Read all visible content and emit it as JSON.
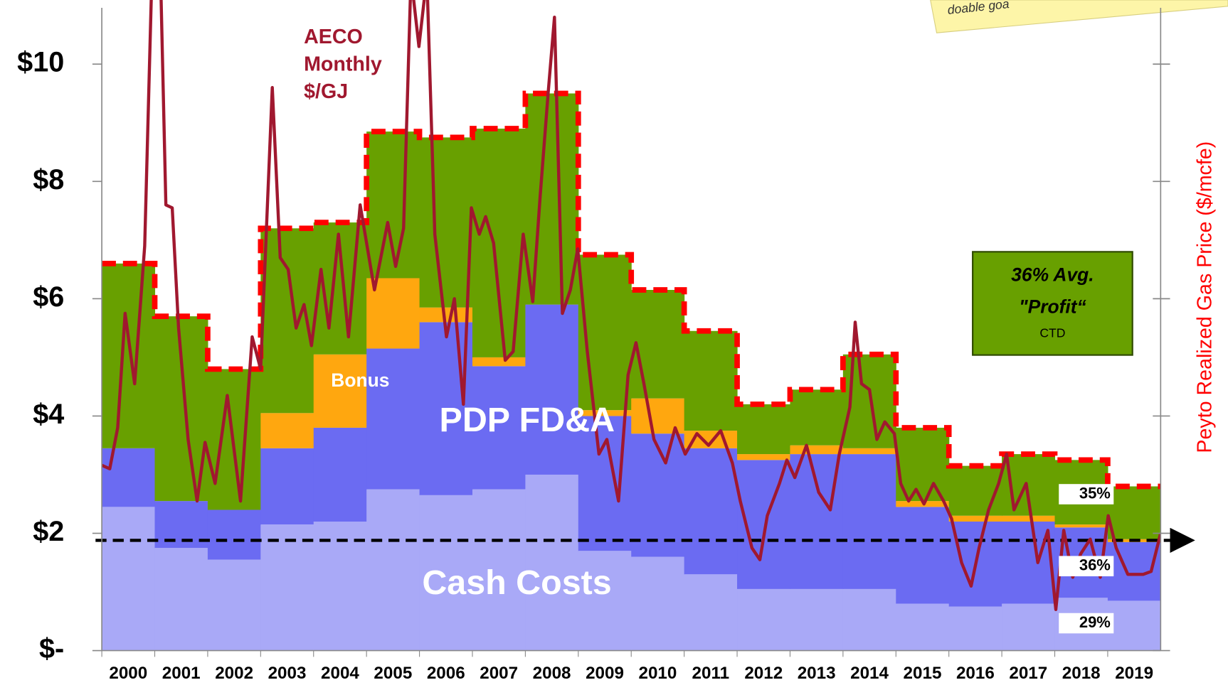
{
  "chart_data": {
    "type": "step_area",
    "categories": [
      "2000",
      "2001",
      "2002",
      "2003",
      "2004",
      "2005",
      "2006",
      "2007",
      "2008",
      "2009",
      "2010",
      "2011",
      "2012",
      "2013",
      "2014",
      "2015",
      "2016",
      "2017",
      "2018",
      "2019"
    ],
    "series": [
      {
        "name": "Cash Costs",
        "color": "#a9a9f7",
        "values": [
          2.45,
          1.75,
          1.55,
          2.15,
          2.2,
          2.75,
          2.65,
          2.75,
          3.0,
          1.7,
          1.6,
          1.3,
          1.05,
          1.05,
          1.05,
          0.8,
          0.75,
          0.8,
          0.9,
          0.85
        ]
      },
      {
        "name": "PDP FD&A",
        "color": "#6b6bf2",
        "values": [
          1.0,
          0.8,
          0.85,
          1.3,
          1.6,
          2.4,
          2.95,
          2.1,
          2.9,
          2.3,
          2.1,
          2.15,
          2.2,
          2.3,
          2.3,
          1.65,
          1.45,
          1.4,
          1.2,
          1.0
        ]
      },
      {
        "name": "Bonus",
        "color": "#ffa70f",
        "values": [
          0,
          0,
          0,
          0.6,
          1.25,
          1.2,
          0.25,
          0.15,
          0,
          0.1,
          0.6,
          0.3,
          0.1,
          0.15,
          0.1,
          0.1,
          0.1,
          0.1,
          0.05,
          0.05
        ]
      },
      {
        "color": "#68a000",
        "values": [
          3.15,
          3.15,
          2.4,
          3.15,
          2.25,
          2.5,
          2.9,
          3.9,
          3.6,
          2.65,
          1.85,
          1.7,
          0.85,
          0.95,
          1.6,
          1.25,
          0.85,
          1.05,
          1.1,
          0.9
        ]
      }
    ],
    "outline_color": "#ff0000",
    "line": {
      "name": "AECO Monthly $/GJ",
      "color": "#a0182f",
      "x": [
        2000.0,
        2000.15,
        2000.3,
        2000.44,
        2000.62,
        2000.81,
        2000.96,
        2001.11,
        2001.21,
        2001.33,
        2001.45,
        2001.63,
        2001.8,
        2001.95,
        2002.14,
        2002.37,
        2002.62,
        2002.84,
        2003.0,
        2003.22,
        2003.37,
        2003.52,
        2003.67,
        2003.82,
        2003.96,
        2004.14,
        2004.29,
        2004.47,
        2004.66,
        2004.88,
        2005.15,
        2005.4,
        2005.55,
        2005.7,
        2005.84,
        2005.99,
        2006.14,
        2006.29,
        2006.51,
        2006.66,
        2006.83,
        2006.98,
        2007.13,
        2007.25,
        2007.4,
        2007.62,
        2007.77,
        2007.96,
        2008.14,
        2008.28,
        2008.43,
        2008.55,
        2008.7,
        2008.85,
        2008.99,
        2009.17,
        2009.39,
        2009.54,
        2009.76,
        2009.94,
        2010.09,
        2010.24,
        2010.43,
        2010.65,
        2010.83,
        2011.02,
        2011.24,
        2011.46,
        2011.69,
        2011.91,
        2012.06,
        2012.28,
        2012.43,
        2012.57,
        2012.8,
        2012.94,
        2013.09,
        2013.31,
        2013.54,
        2013.76,
        2013.93,
        2014.13,
        2014.23,
        2014.35,
        2014.5,
        2014.64,
        2014.79,
        2014.97,
        2015.09,
        2015.24,
        2015.38,
        2015.53,
        2015.71,
        2015.9,
        2016.05,
        2016.24,
        2016.42,
        2016.57,
        2016.75,
        2016.94,
        2017.09,
        2017.23,
        2017.46,
        2017.68,
        2017.87,
        2018.02,
        2018.17,
        2018.34,
        2018.49,
        2018.67,
        2018.86,
        2019.01,
        2019.16,
        2019.38,
        2019.67,
        2019.82,
        2020.0
      ],
      "values": [
        3.16,
        3.1,
        3.8,
        5.75,
        4.55,
        6.9,
        12,
        11.5,
        7.6,
        7.55,
        5.5,
        3.6,
        2.55,
        3.55,
        2.85,
        4.35,
        2.55,
        5.35,
        4.8,
        9.6,
        6.7,
        6.5,
        5.5,
        5.9,
        5.2,
        6.5,
        5.5,
        7.1,
        5.35,
        7.6,
        6.15,
        7.3,
        6.55,
        7.2,
        11.5,
        10.3,
        11.5,
        7.1,
        5.35,
        6.0,
        4.2,
        7.55,
        7.1,
        7.4,
        6.95,
        4.95,
        5.1,
        7.1,
        5.95,
        7.75,
        9.5,
        10.8,
        5.75,
        6.15,
        6.85,
        5.1,
        3.35,
        3.6,
        2.55,
        4.7,
        5.25,
        4.55,
        3.6,
        3.2,
        3.8,
        3.35,
        3.7,
        3.5,
        3.75,
        3.2,
        2.55,
        1.75,
        1.55,
        2.3,
        2.85,
        3.25,
        2.95,
        3.5,
        2.7,
        2.4,
        3.35,
        4.15,
        5.6,
        4.55,
        4.45,
        3.6,
        3.9,
        3.7,
        2.85,
        2.55,
        2.75,
        2.5,
        2.85,
        2.55,
        2.25,
        1.5,
        1.1,
        1.75,
        2.4,
        2.85,
        3.35,
        2.4,
        2.85,
        1.5,
        2.05,
        0.7,
        2.05,
        1.25,
        1.65,
        1.9,
        1.25,
        2.3,
        1.75,
        1.3,
        1.3,
        1.35,
        2.0
      ]
    },
    "xlim": [
      2000,
      2020
    ],
    "ylim": [
      0,
      10.96
    ],
    "yticks": [
      {
        "value": 0,
        "label": "$-"
      },
      {
        "value": 2,
        "label": "$2"
      },
      {
        "value": 4,
        "label": "$4"
      },
      {
        "value": 6,
        "label": "$6"
      },
      {
        "value": 8,
        "label": "$8"
      },
      {
        "value": 10,
        "label": "$10"
      }
    ],
    "y2_label": "Peyto Realized Gas Price ($/mcfe)",
    "reference_line": 1.88,
    "annotations": [
      "35%",
      "36%",
      "29%"
    ],
    "profit_box": [
      "36% Avg.",
      "\"Profit“",
      "CTD"
    ],
    "note": "doable goa"
  }
}
